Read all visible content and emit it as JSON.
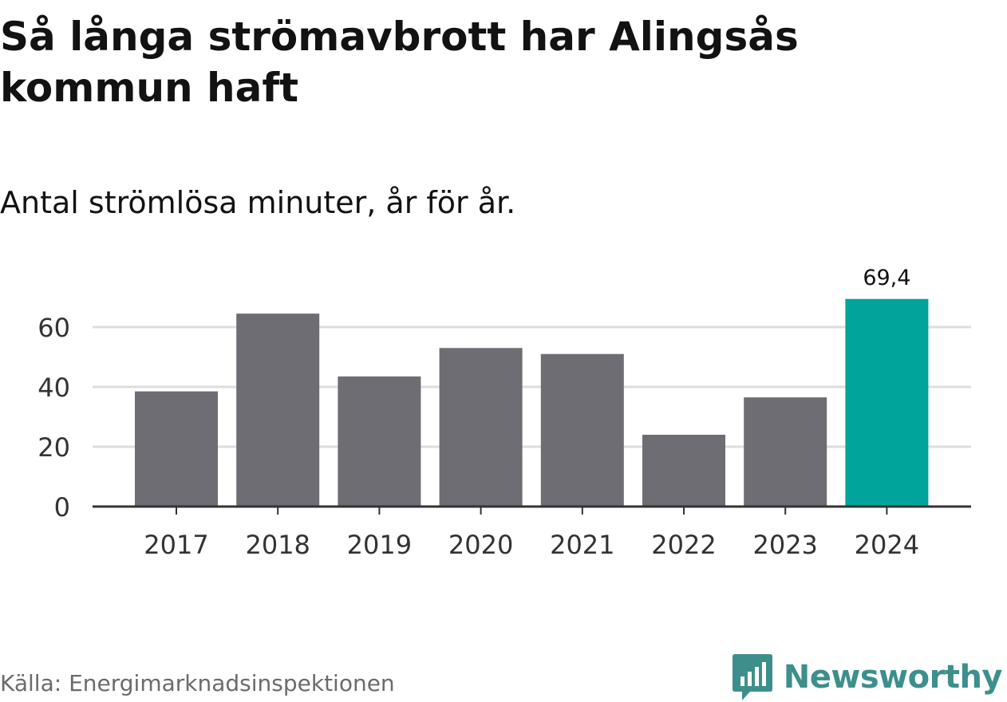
{
  "chart_data": {
    "type": "bar",
    "title": "Så långa strömavbrott har Alingsås kommun haft",
    "subtitle": "Antal strömlösa minuter, år för år.",
    "categories": [
      "2017",
      "2018",
      "2019",
      "2020",
      "2021",
      "2022",
      "2023",
      "2024"
    ],
    "values": [
      38.5,
      64.5,
      43.5,
      53.0,
      51.0,
      24.0,
      36.5,
      69.4
    ],
    "data_labels": {
      "2024": "69,4"
    },
    "highlight_index": 7,
    "ylim": [
      0,
      72
    ],
    "yticks": [
      0,
      20,
      40,
      60
    ],
    "grid": true,
    "colors": {
      "bar": "#6e6d74",
      "highlight": "#00a49a",
      "grid": "#dddddd",
      "axis": "#333333"
    }
  },
  "footer": {
    "source": "Källa: Energimarknadsinspektionen",
    "brand": "Newsworthy",
    "brand_icon": "newsworthy-chart-bubble-icon",
    "brand_color": "#3d8f8c"
  }
}
